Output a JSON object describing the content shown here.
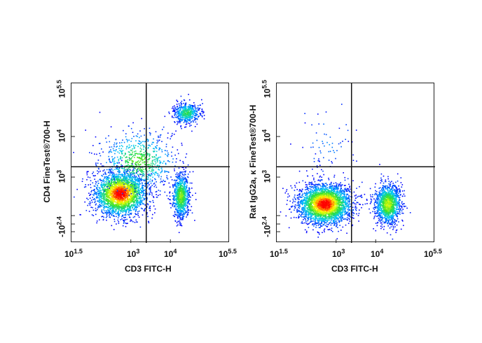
{
  "chart_data": [
    {
      "type": "scatter",
      "subtype": "flow-cytometry pseudocolor density plot",
      "xlabel": "CD3 FITC-H",
      "ylabel": "CD4 FineTest®700-H",
      "x_scale": "log",
      "y_scale": "log",
      "xlim": [
        31.6,
        316228
      ],
      "ylim": [
        -251,
        316228
      ],
      "x_ticks": [
        {
          "base": "10",
          "exp": "1.5"
        },
        {
          "base": "10",
          "exp": "3"
        },
        {
          "base": "10",
          "exp": "4"
        },
        {
          "base": "10",
          "exp": "5.5"
        }
      ],
      "y_ticks": [
        {
          "base": "-10",
          "exp": "2.4"
        },
        {
          "base": "10",
          "exp": "3"
        },
        {
          "base": "10",
          "exp": "4"
        },
        {
          "base": "10",
          "exp": "5.5"
        }
      ],
      "gates": {
        "x": 2450,
        "y": 1800
      },
      "populations": [
        {
          "center": [
            530,
            400
          ],
          "spread_decades": [
            0.3,
            0.25
          ],
          "events": 2600
        },
        {
          "center": [
            18000,
            350
          ],
          "spread_decades": [
            0.1,
            0.25
          ],
          "events": 900
        },
        {
          "center": [
            25000,
            39000
          ],
          "spread_decades": [
            0.15,
            0.12
          ],
          "events": 500
        },
        {
          "center": [
            1500,
            2500
          ],
          "spread_decades": [
            0.45,
            0.35
          ],
          "events": 700
        }
      ],
      "colormap": [
        "#0000ff",
        "#00c8ff",
        "#30e030",
        "#ffff00",
        "#ff0000"
      ]
    },
    {
      "type": "scatter",
      "subtype": "flow-cytometry pseudocolor density plot",
      "xlabel": "CD3 FITC-H",
      "ylabel": "Rat IgG2a, κ FineTest®700-H",
      "x_scale": "log",
      "y_scale": "log",
      "xlim": [
        31.6,
        316228
      ],
      "ylim": [
        -251,
        316228
      ],
      "x_ticks": [
        {
          "base": "10",
          "exp": "1.5"
        },
        {
          "base": "10",
          "exp": "3"
        },
        {
          "base": "10",
          "exp": "4"
        },
        {
          "base": "10",
          "exp": "5.5"
        }
      ],
      "y_ticks": [
        {
          "base": "-10",
          "exp": "2.4"
        },
        {
          "base": "10",
          "exp": "3"
        },
        {
          "base": "10",
          "exp": "4"
        },
        {
          "base": "10",
          "exp": "5.5"
        }
      ],
      "gates": {
        "x": 2450,
        "y": 1800
      },
      "populations": [
        {
          "center": [
            500,
            220
          ],
          "spread_decades": [
            0.3,
            0.22
          ],
          "events": 3000
        },
        {
          "center": [
            20000,
            220
          ],
          "spread_decades": [
            0.15,
            0.22
          ],
          "events": 1300
        },
        {
          "center": [
            600,
            8000
          ],
          "spread_decades": [
            0.3,
            0.4
          ],
          "events": 70
        }
      ],
      "colormap": [
        "#0000ff",
        "#00c8ff",
        "#30e030",
        "#ffff00",
        "#ff0000"
      ]
    }
  ]
}
